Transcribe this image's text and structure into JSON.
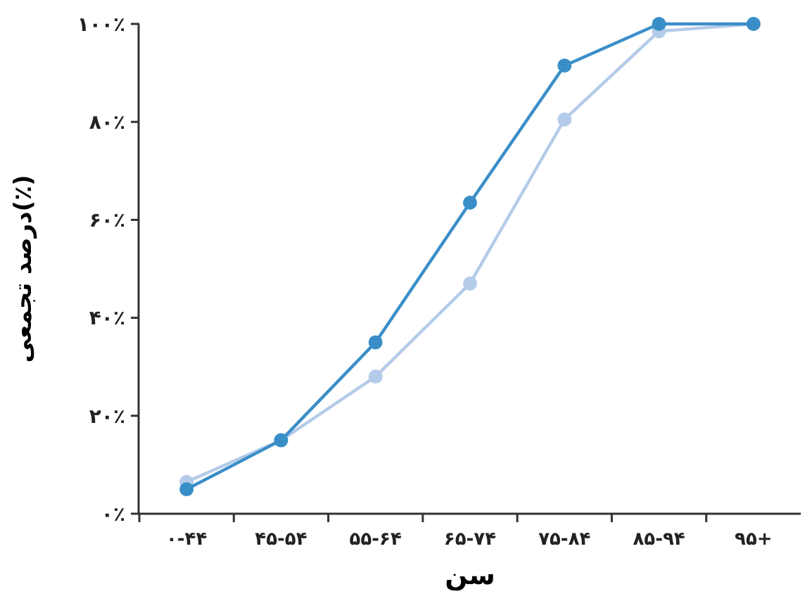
{
  "chart_data": {
    "type": "line",
    "xlabel": "سن",
    "ylabel": "درصد تجمعی(٪)",
    "categories": [
      "۰-۴۴",
      "۴۵-۵۴",
      "۵۵-۶۴",
      "۶۵-۷۴",
      "۷۵-۸۴",
      "۸۵-۹۴",
      "۹۵+"
    ],
    "series": [
      {
        "color": "#b4cbe9",
        "values": [
          6.5,
          15,
          28,
          47,
          80.5,
          98.5,
          100
        ]
      },
      {
        "color": "#3a8ec8",
        "values": [
          5,
          15,
          35,
          63.5,
          91.5,
          100,
          100
        ]
      }
    ],
    "ylim": [
      0,
      100
    ],
    "yticks": [
      {
        "value": 0,
        "label": "۰٪"
      },
      {
        "value": 20,
        "label": "۲۰٪"
      },
      {
        "value": 40,
        "label": "۴۰٪"
      },
      {
        "value": 60,
        "label": "۶۰٪"
      },
      {
        "value": 80,
        "label": "۸۰٪"
      },
      {
        "value": 100,
        "label": "۱۰۰٪"
      }
    ],
    "marker": "circle",
    "line_style": "solid"
  }
}
